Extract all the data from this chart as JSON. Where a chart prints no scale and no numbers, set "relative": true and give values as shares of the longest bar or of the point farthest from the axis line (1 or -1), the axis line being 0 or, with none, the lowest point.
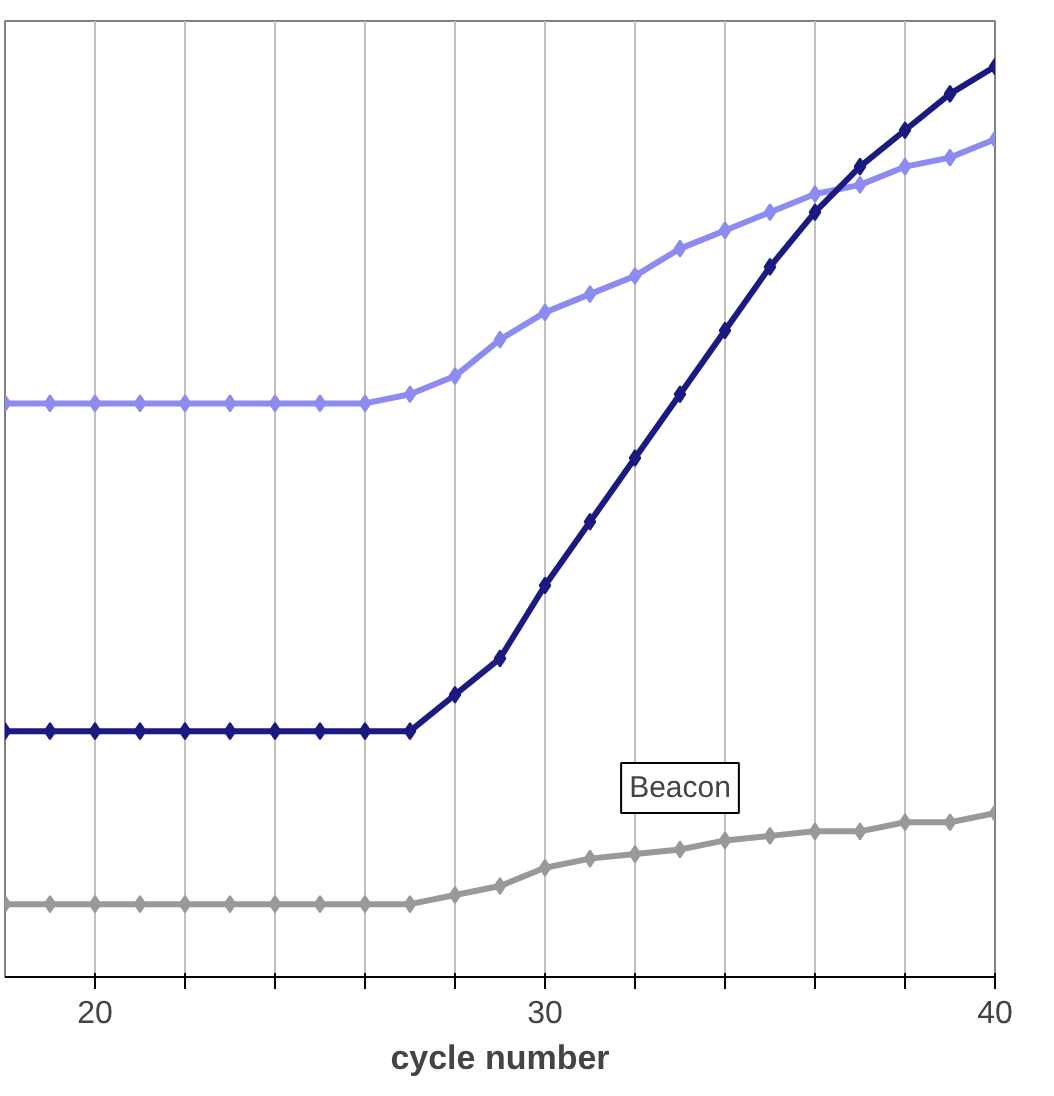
{
  "chart_data": {
    "type": "line",
    "relative": true,
    "xlabel": "cycle number",
    "x": [
      18,
      19,
      20,
      21,
      22,
      23,
      24,
      25,
      26,
      27,
      28,
      29,
      30,
      31,
      32,
      33,
      34,
      35,
      36,
      37,
      38,
      39,
      40
    ],
    "series": [
      {
        "color": "#8c8cf0",
        "values": [
          0.63,
          0.63,
          0.63,
          0.63,
          0.63,
          0.63,
          0.63,
          0.63,
          0.63,
          0.64,
          0.66,
          0.7,
          0.73,
          0.75,
          0.77,
          0.8,
          0.82,
          0.84,
          0.86,
          0.87,
          0.89,
          0.9,
          0.92
        ]
      },
      {
        "color": "#1a1a80",
        "values": [
          0.27,
          0.27,
          0.27,
          0.27,
          0.27,
          0.27,
          0.27,
          0.27,
          0.27,
          0.27,
          0.31,
          0.35,
          0.43,
          0.5,
          0.57,
          0.64,
          0.71,
          0.78,
          0.84,
          0.89,
          0.93,
          0.97,
          1
        ]
      },
      {
        "name": "Beacon",
        "color": "#999999",
        "values": [
          0.08,
          0.08,
          0.08,
          0.08,
          0.08,
          0.08,
          0.08,
          0.08,
          0.08,
          0.08,
          0.09,
          0.1,
          0.12,
          0.13,
          0.135,
          0.14,
          0.15,
          0.155,
          0.16,
          0.16,
          0.17,
          0.17,
          0.18
        ]
      }
    ],
    "xlim": [
      18,
      40
    ],
    "xticks": [
      20,
      {
        "value": 22,
        "label": null
      },
      {
        "value": 24,
        "label": null
      },
      {
        "value": 26,
        "label": null
      },
      {
        "value": 28,
        "label": null
      },
      30,
      {
        "value": 32,
        "label": null
      },
      {
        "value": 34,
        "label": null
      },
      {
        "value": 36,
        "label": null
      },
      {
        "value": 38,
        "label": null
      },
      40
    ],
    "grid": "x",
    "marker": "diamond",
    "line_style": "solid",
    "tick_labels": "x"
  }
}
